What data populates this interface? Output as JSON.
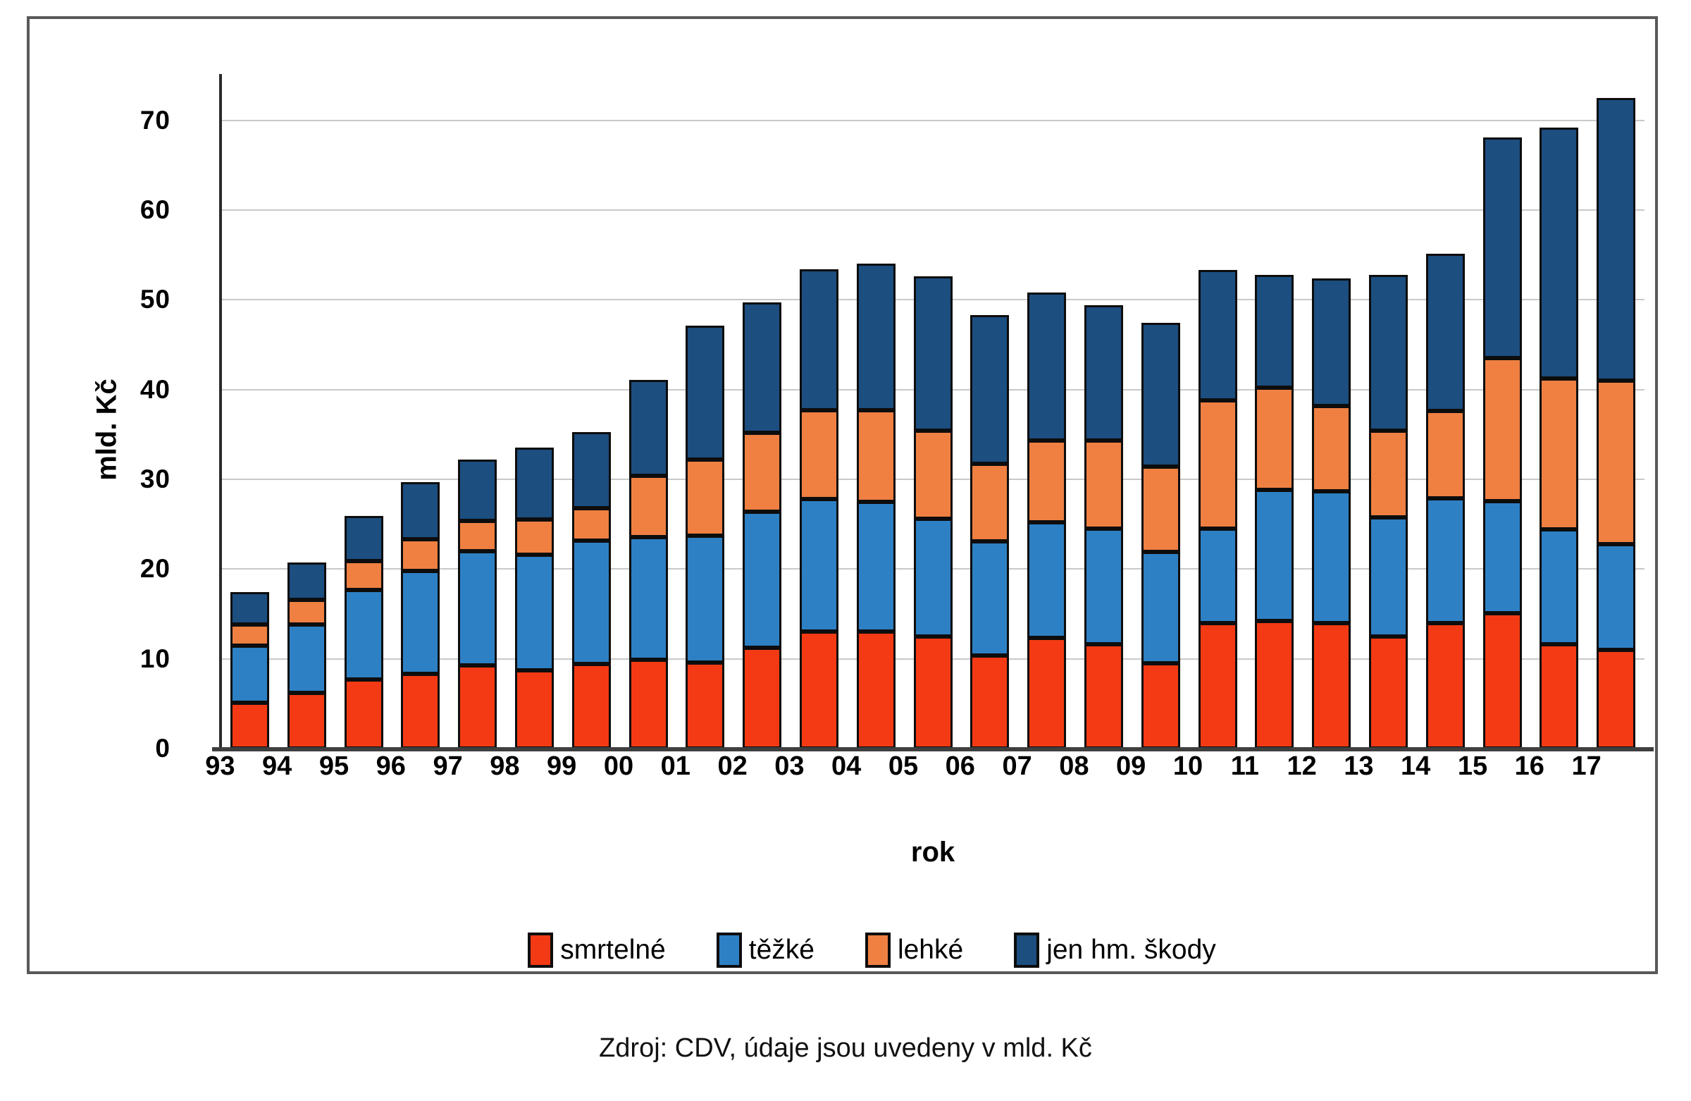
{
  "figure": {
    "caption": "Zdroj: CDV, údaje jsou uvedeny v mld. Kč"
  },
  "chart_data": {
    "type": "bar",
    "stacked": true,
    "title": "",
    "xlabel": "rok",
    "ylabel": "mld. Kč",
    "ylim": [
      0,
      75
    ],
    "yticks": [
      0,
      10,
      20,
      30,
      40,
      50,
      60,
      70
    ],
    "grid": "horizontal",
    "legend_position": "bottom",
    "categories": [
      "93",
      "94",
      "95",
      "96",
      "97",
      "98",
      "99",
      "00",
      "01",
      "02",
      "03",
      "04",
      "05",
      "06",
      "07",
      "08",
      "09",
      "10",
      "11",
      "12",
      "13",
      "14",
      "15",
      "16",
      "17"
    ],
    "series": [
      {
        "name": "smrtelné",
        "color": "#f43a14",
        "values": [
          5.1,
          6.2,
          7.7,
          8.3,
          9.3,
          8.7,
          9.4,
          9.9,
          9.6,
          11.2,
          13.0,
          13.0,
          12.5,
          10.4,
          12.3,
          11.6,
          9.5,
          14.0,
          14.2,
          14.0,
          12.5,
          14.0,
          15.1,
          11.6,
          11.0
        ]
      },
      {
        "name": "těžké",
        "color": "#2e80c4",
        "values": [
          6.4,
          7.6,
          10.0,
          11.5,
          12.7,
          12.9,
          13.8,
          13.7,
          14.1,
          15.2,
          14.8,
          14.5,
          13.1,
          12.7,
          12.9,
          12.9,
          12.4,
          10.5,
          14.6,
          14.7,
          13.3,
          13.9,
          12.5,
          12.8,
          11.8
        ]
      },
      {
        "name": "lehké",
        "color": "#ef8042",
        "values": [
          2.3,
          2.8,
          3.2,
          3.5,
          3.4,
          3.9,
          3.6,
          6.8,
          8.5,
          8.8,
          9.9,
          10.2,
          9.8,
          8.6,
          9.1,
          9.8,
          9.5,
          14.3,
          11.4,
          9.5,
          9.6,
          9.7,
          15.9,
          16.8,
          18.2
        ]
      },
      {
        "name": "jen hm. škody",
        "color": "#1c4e80",
        "values": [
          3.6,
          4.1,
          5.0,
          6.4,
          6.8,
          8.0,
          8.5,
          10.7,
          14.9,
          14.5,
          15.7,
          16.3,
          17.2,
          16.6,
          16.5,
          15.1,
          16.0,
          14.5,
          12.6,
          14.2,
          17.4,
          17.5,
          24.6,
          28.0,
          31.5
        ]
      }
    ]
  }
}
